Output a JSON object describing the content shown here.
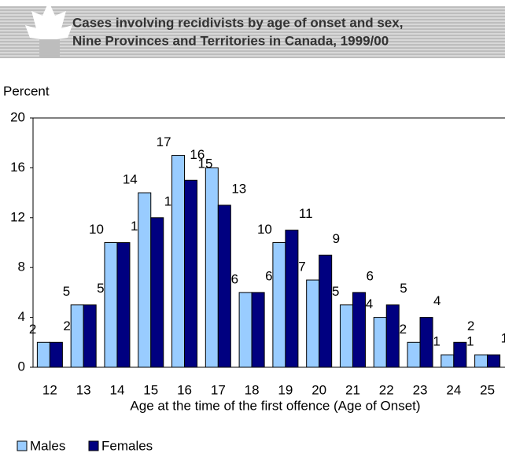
{
  "chart_data": {
    "type": "bar",
    "title": [
      "Cases involving recidivists by age of onset and sex,",
      "Nine Provinces and Territories in Canada, 1999/00"
    ],
    "y_label": "Percent",
    "x_label": "Age at the time of the first offence (Age of Onset)",
    "categories": [
      "12",
      "13",
      "14",
      "15",
      "16",
      "17",
      "18",
      "19",
      "20",
      "21",
      "22",
      "23",
      "24",
      "25"
    ],
    "series": [
      {
        "name": "Males",
        "color": "#99ccff",
        "values": [
          2,
          5,
          10,
          14,
          17,
          16,
          6,
          10,
          7,
          5,
          4,
          2,
          1,
          1
        ]
      },
      {
        "name": "Females",
        "color": "#000080",
        "values": [
          2,
          5,
          10,
          12,
          15,
          13,
          6,
          11,
          9,
          6,
          5,
          4,
          2,
          1
        ]
      }
    ],
    "ylim": [
      0,
      20
    ],
    "yticks": [
      0,
      4,
      8,
      12,
      16,
      20
    ],
    "grid": false,
    "legend": "bottom-left"
  }
}
